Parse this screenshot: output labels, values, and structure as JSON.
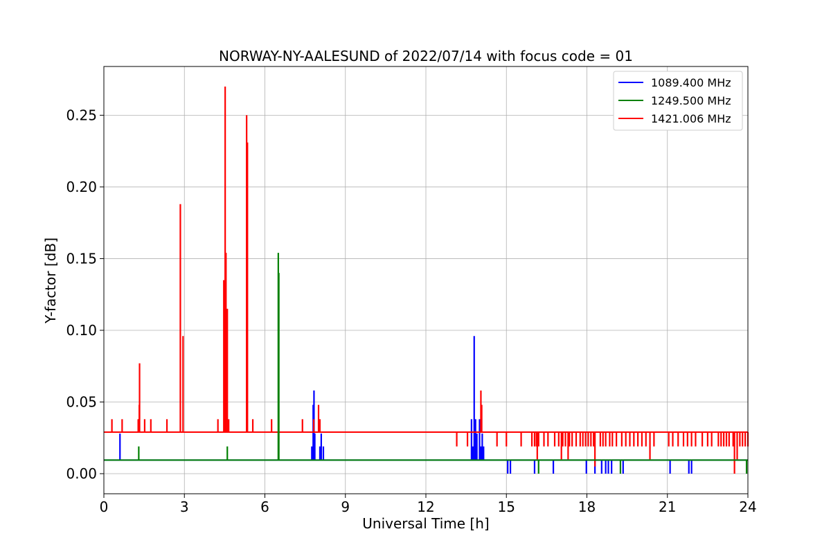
{
  "chart_data": {
    "type": "line",
    "title": "NORWAY-NY-AALESUND of 2022/07/14 with focus code = 01",
    "xlabel": "Universal Time [h]",
    "ylabel": "Y-factor [dB]",
    "xlim": [
      0,
      24
    ],
    "ylim": [
      -0.014,
      0.284
    ],
    "xticks": [
      0,
      3,
      6,
      9,
      12,
      15,
      18,
      21,
      24
    ],
    "xtick_labels": [
      "0",
      "3",
      "6",
      "9",
      "12",
      "15",
      "18",
      "21",
      "24"
    ],
    "yticks": [
      0.0,
      0.05,
      0.1,
      0.15,
      0.2,
      0.25
    ],
    "ytick_labels": [
      "0.00",
      "0.05",
      "0.10",
      "0.15",
      "0.20",
      "0.25"
    ],
    "grid": true,
    "legend_position": "top-right",
    "series": [
      {
        "name": "1089.400 MHz",
        "color": "#0000ff",
        "baseline": 0.0095,
        "spikes": [
          [
            0.6,
            0.028
          ],
          [
            7.75,
            0.019
          ],
          [
            7.8,
            0.048
          ],
          [
            7.83,
            0.058
          ],
          [
            7.86,
            0.028
          ],
          [
            8.05,
            0.019
          ],
          [
            8.1,
            0.028
          ],
          [
            8.18,
            0.019
          ],
          [
            13.7,
            0.038
          ],
          [
            13.75,
            0.019
          ],
          [
            13.8,
            0.096
          ],
          [
            13.85,
            0.038
          ],
          [
            13.9,
            0.028
          ],
          [
            14.0,
            0.038
          ],
          [
            14.05,
            0.019
          ],
          [
            14.1,
            0.028
          ],
          [
            14.15,
            0.019
          ],
          [
            15.05,
            0.0
          ],
          [
            15.15,
            0.0
          ],
          [
            16.05,
            0.0
          ],
          [
            16.75,
            0.0
          ],
          [
            17.98,
            0.0
          ],
          [
            18.3,
            0.0
          ],
          [
            18.55,
            0.0
          ],
          [
            18.7,
            0.0
          ],
          [
            18.8,
            0.0
          ],
          [
            18.92,
            0.0
          ],
          [
            19.35,
            0.0
          ],
          [
            21.1,
            0.0
          ],
          [
            21.8,
            0.0
          ],
          [
            21.9,
            0.0
          ]
        ]
      },
      {
        "name": "1249.500 MHz",
        "color": "#008000",
        "baseline": 0.0095,
        "spikes": [
          [
            1.3,
            0.019
          ],
          [
            4.6,
            0.019
          ],
          [
            6.5,
            0.154
          ],
          [
            6.52,
            0.14
          ],
          [
            16.2,
            0.0
          ],
          [
            19.25,
            0.0
          ],
          [
            23.95,
            0.0
          ]
        ]
      },
      {
        "name": "1421.006 MHz",
        "color": "#ff0000",
        "baseline": 0.029,
        "spikes": [
          [
            0.3,
            0.038
          ],
          [
            0.68,
            0.038
          ],
          [
            1.28,
            0.038
          ],
          [
            1.32,
            0.048
          ],
          [
            1.33,
            0.077
          ],
          [
            1.52,
            0.038
          ],
          [
            1.75,
            0.038
          ],
          [
            2.35,
            0.038
          ],
          [
            2.85,
            0.188
          ],
          [
            2.95,
            0.096
          ],
          [
            4.25,
            0.038
          ],
          [
            4.47,
            0.135
          ],
          [
            4.52,
            0.27
          ],
          [
            4.55,
            0.154
          ],
          [
            4.6,
            0.115
          ],
          [
            4.65,
            0.038
          ],
          [
            5.32,
            0.25
          ],
          [
            5.35,
            0.231
          ],
          [
            5.55,
            0.038
          ],
          [
            6.25,
            0.038
          ],
          [
            7.4,
            0.038
          ],
          [
            7.82,
            0.038
          ],
          [
            8.0,
            0.048
          ],
          [
            8.05,
            0.038
          ],
          [
            13.15,
            0.019
          ],
          [
            13.55,
            0.019
          ],
          [
            14.05,
            0.058
          ],
          [
            14.08,
            0.048
          ],
          [
            14.65,
            0.019
          ],
          [
            15.0,
            0.019
          ],
          [
            15.55,
            0.019
          ],
          [
            15.95,
            0.019
          ],
          [
            16.05,
            0.019
          ],
          [
            16.12,
            0.019
          ],
          [
            16.2,
            0.019
          ],
          [
            16.15,
            0.01
          ],
          [
            16.4,
            0.019
          ],
          [
            16.55,
            0.019
          ],
          [
            16.8,
            0.019
          ],
          [
            16.95,
            0.019
          ],
          [
            17.05,
            0.01
          ],
          [
            17.1,
            0.019
          ],
          [
            17.2,
            0.019
          ],
          [
            17.3,
            0.01
          ],
          [
            17.35,
            0.019
          ],
          [
            17.45,
            0.019
          ],
          [
            17.6,
            0.019
          ],
          [
            17.75,
            0.019
          ],
          [
            17.85,
            0.019
          ],
          [
            17.95,
            0.019
          ],
          [
            18.05,
            0.019
          ],
          [
            18.15,
            0.019
          ],
          [
            18.25,
            0.019
          ],
          [
            18.3,
            0.005
          ],
          [
            18.5,
            0.019
          ],
          [
            18.6,
            0.019
          ],
          [
            18.7,
            0.019
          ],
          [
            18.85,
            0.019
          ],
          [
            18.95,
            0.019
          ],
          [
            19.1,
            0.019
          ],
          [
            19.3,
            0.019
          ],
          [
            19.45,
            0.019
          ],
          [
            19.6,
            0.019
          ],
          [
            19.75,
            0.019
          ],
          [
            19.9,
            0.019
          ],
          [
            20.05,
            0.019
          ],
          [
            20.2,
            0.019
          ],
          [
            20.35,
            0.01
          ],
          [
            20.5,
            0.019
          ],
          [
            21.05,
            0.019
          ],
          [
            21.2,
            0.019
          ],
          [
            21.4,
            0.019
          ],
          [
            21.6,
            0.019
          ],
          [
            21.75,
            0.019
          ],
          [
            21.9,
            0.019
          ],
          [
            22.05,
            0.019
          ],
          [
            22.3,
            0.019
          ],
          [
            22.5,
            0.019
          ],
          [
            22.65,
            0.019
          ],
          [
            22.9,
            0.019
          ],
          [
            23.0,
            0.019
          ],
          [
            23.1,
            0.019
          ],
          [
            23.2,
            0.019
          ],
          [
            23.3,
            0.019
          ],
          [
            23.45,
            0.019
          ],
          [
            23.5,
            0.0
          ],
          [
            23.6,
            0.01
          ],
          [
            23.7,
            0.019
          ],
          [
            23.8,
            0.019
          ],
          [
            23.9,
            0.019
          ],
          [
            24.0,
            0.019
          ]
        ]
      }
    ]
  }
}
